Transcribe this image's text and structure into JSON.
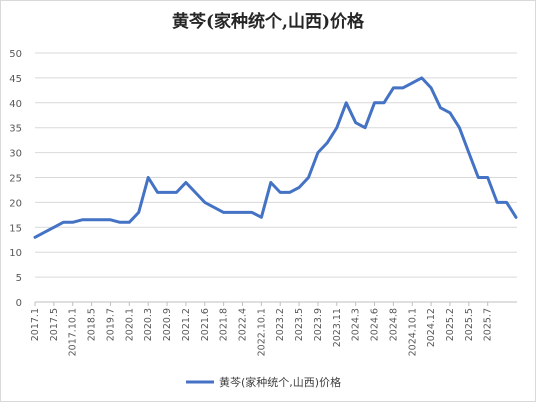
{
  "chart_data": {
    "type": "line",
    "title": "黄芩(家种统个,山西)价格",
    "xlabel": "",
    "ylabel": "",
    "ylim": [
      0,
      50
    ],
    "y_ticks": [
      "0",
      "5",
      "10",
      "15",
      "20",
      "25",
      "30",
      "35",
      "40",
      "45",
      "50"
    ],
    "grid": true,
    "legend_position": "bottom",
    "x_tick_labels": [
      "2017.1",
      "2017.5",
      "2017.10.1",
      "2018.5",
      "2019.7",
      "2020.1",
      "2020.3",
      "2020.9",
      "2021.2",
      "2021.6",
      "2021.8",
      "2022.4",
      "2022.10.1",
      "2023.2",
      "2023.5",
      "2023.9",
      "2023.11",
      "2024.3",
      "2024.6",
      "2024.8",
      "2024.10.1",
      "2024.12",
      "2025.2",
      "2025.5",
      "2025.7"
    ],
    "x_tick_positions": [
      0,
      2,
      4,
      6,
      8,
      10,
      12,
      14,
      16,
      18,
      20,
      22,
      24,
      26,
      28,
      30,
      32,
      34,
      36,
      38,
      40,
      42,
      44,
      46,
      48
    ],
    "series": [
      {
        "name": "黄芩(家种统个,山西)价格",
        "color": "#4472c4",
        "values": [
          13,
          14,
          15,
          16,
          16,
          16.5,
          16.5,
          16.5,
          16.5,
          16,
          16,
          18,
          25,
          22,
          22,
          22,
          24,
          22,
          20,
          19,
          18,
          18,
          18,
          18,
          17,
          24,
          22,
          22,
          23,
          25,
          30,
          32,
          35,
          40,
          36,
          35,
          40,
          40,
          43,
          43,
          44,
          45,
          43,
          39,
          38,
          35,
          30,
          25,
          25,
          20,
          20,
          17
        ]
      }
    ]
  }
}
